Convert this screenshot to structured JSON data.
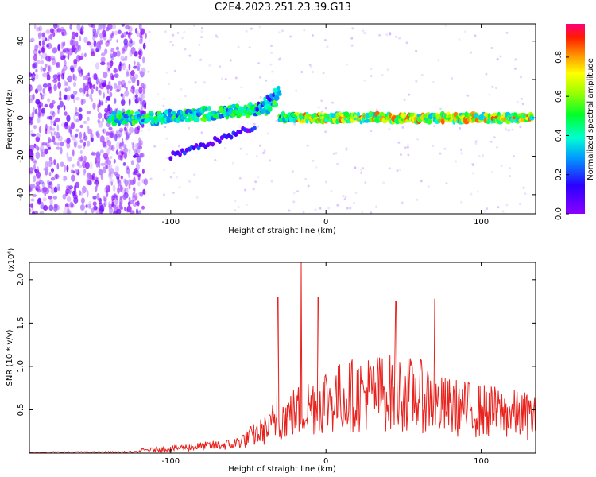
{
  "title": "C2E4.2023.251.23.39.G13",
  "colors": {
    "snr_line": "#e8231e",
    "axis": "#000000",
    "low_amp": "#8a3cf0"
  },
  "chart_data": [
    {
      "type": "heatmap",
      "title": "C2E4.2023.251.23.39.G13",
      "xlabel": "Height of straight line (km)",
      "ylabel": "Frequency (Hz)",
      "xlim": [
        -191,
        135
      ],
      "ylim": [
        -50,
        49
      ],
      "x_ticks": [
        "-100",
        "0",
        "100"
      ],
      "y_ticks": [
        "-40",
        "-20",
        "0",
        "20",
        "40"
      ],
      "colorbar": {
        "label": "Normalized spectral amplitude",
        "range": [
          0.0,
          0.97
        ],
        "ticks": [
          "0.0",
          "0.2",
          "0.4",
          "0.6",
          "0.8"
        ]
      },
      "features": [
        {
          "name": "ridge",
          "x_range": [
            -140,
            133
          ],
          "frequency_hz": 0
        },
        {
          "name": "branch",
          "x_range": [
            -100,
            -45
          ],
          "frequency_hz": [
            -20,
            -5
          ]
        },
        {
          "name": "streak",
          "x_range": [
            -45,
            -30
          ],
          "frequency_hz": [
            5,
            15
          ]
        }
      ]
    },
    {
      "type": "line",
      "xlabel": "Height of straight line (km)",
      "ylabel": "SNR (10 * v/v)",
      "y_multiplier": "(x10⁴)",
      "xlim": [
        -191,
        135
      ],
      "ylim": [
        0,
        2.2
      ],
      "x_ticks": [
        "-100",
        "0",
        "100"
      ],
      "y_ticks": [
        "0.5",
        "1.0",
        "1.5",
        "2.0"
      ],
      "peaks": [
        {
          "x": -31,
          "y": 1.8
        },
        {
          "x": -16,
          "y": 2.2
        },
        {
          "x": -5,
          "y": 1.8
        },
        {
          "x": 45,
          "y": 1.75
        },
        {
          "x": 70,
          "y": 1.78
        }
      ]
    }
  ]
}
